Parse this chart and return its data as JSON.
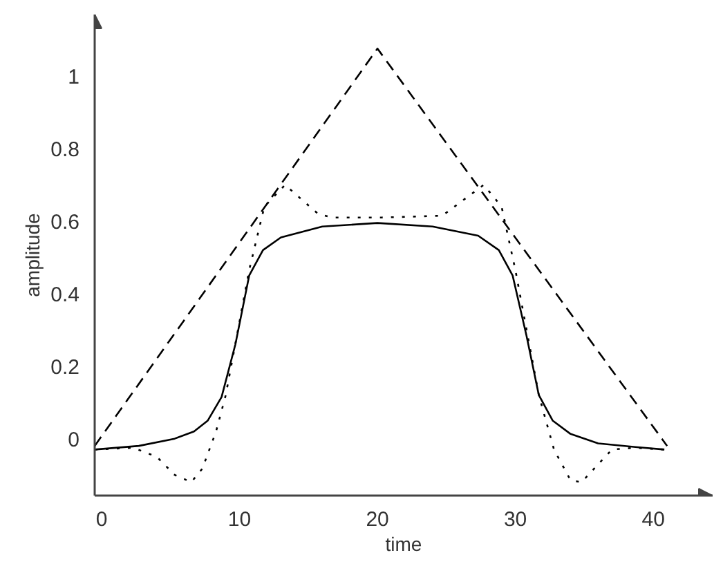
{
  "chart_data": {
    "type": "line",
    "xlabel": "time",
    "ylabel": "amplitude",
    "xlim": [
      -0.5,
      44.3
    ],
    "ylim": [
      -0.157,
      1.17
    ],
    "xticks": [
      0,
      10,
      20,
      30,
      40
    ],
    "yticks": [
      0,
      0.2,
      0.4,
      0.6,
      0.8,
      1
    ],
    "grid": false,
    "marker": "none",
    "series": [
      {
        "color": "#000000",
        "line_style": "dashed",
        "x": [
          -0.5,
          20,
          41.0
        ],
        "values": [
          -0.02,
          1.076,
          -0.02
        ]
      },
      {
        "color": "#000000",
        "line_style": "solid",
        "x": [
          -0.5,
          2.7,
          5.3,
          6.7,
          7.7,
          8.7,
          9.7,
          10.7,
          11.7,
          13,
          16,
          20,
          24,
          27.3,
          28.8,
          29.8,
          30.8,
          31.7,
          32.7,
          34,
          36,
          38.7,
          40.8
        ],
        "values": [
          -0.03,
          -0.02,
          0,
          0.02,
          0.05,
          0.115,
          0.26,
          0.45,
          0.52,
          0.555,
          0.585,
          0.595,
          0.585,
          0.56,
          0.52,
          0.45,
          0.285,
          0.12,
          0.05,
          0.013,
          -0.013,
          -0.023,
          -0.03
        ]
      },
      {
        "color": "#000000",
        "line_style": "dotted",
        "x": [
          -0.5,
          2.3,
          4,
          5.3,
          6.5,
          7.3,
          8.3,
          9,
          10.7,
          11.8,
          13.3,
          15.7,
          16.7,
          20.3,
          24.7,
          27.7,
          29,
          30,
          31.7,
          32.8,
          34,
          34.8,
          37,
          38.7,
          40.8
        ],
        "values": [
          -0.03,
          -0.025,
          -0.05,
          -0.1,
          -0.12,
          -0.083,
          0.02,
          0.12,
          0.465,
          0.64,
          0.7,
          0.62,
          0.61,
          0.61,
          0.615,
          0.7,
          0.64,
          0.465,
          0.12,
          -0.03,
          -0.115,
          -0.12,
          -0.03,
          -0.025,
          -0.03
        ]
      }
    ]
  }
}
